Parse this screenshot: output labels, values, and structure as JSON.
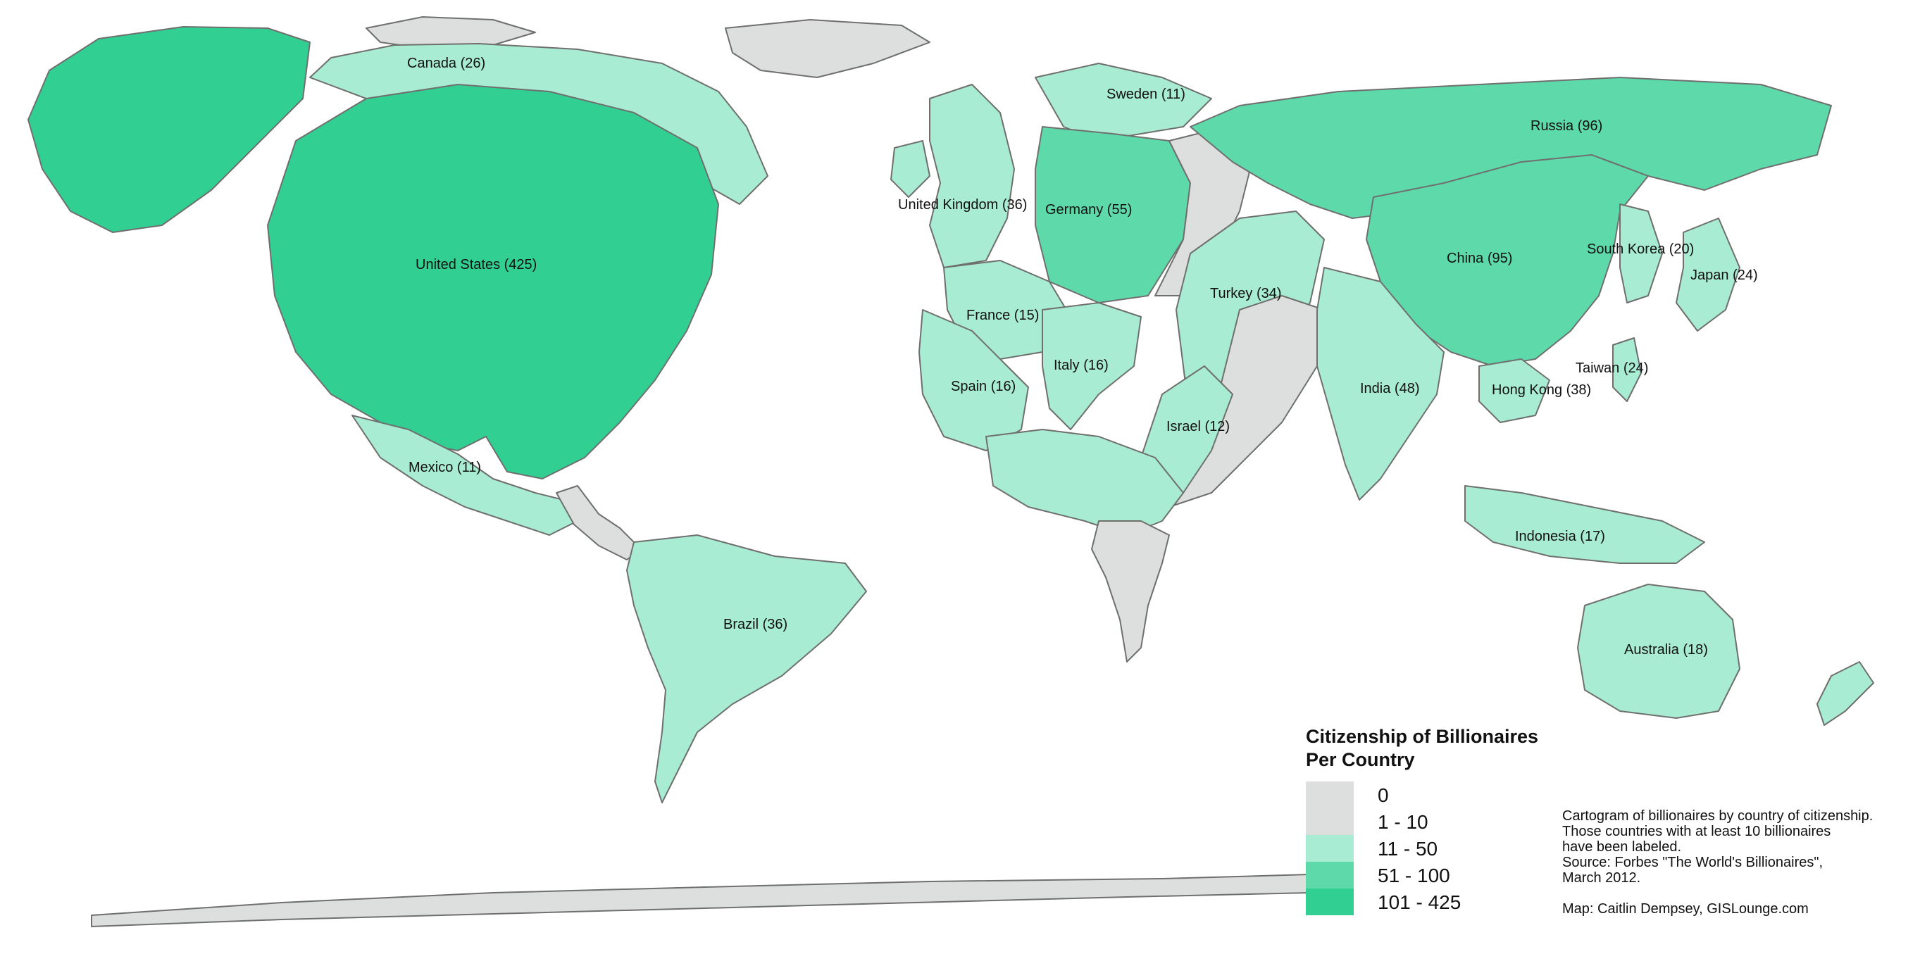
{
  "legend": {
    "title": "Citizenship of Billionaires Per Country",
    "classes": [
      {
        "label": "0",
        "color": "#dcdfdd"
      },
      {
        "label": "1 - 10",
        "color": "#dcdfdd"
      },
      {
        "label": "11 - 50",
        "color": "#a8ecd3"
      },
      {
        "label": "51 - 100",
        "color": "#5ed9aa"
      },
      {
        "label": "101 - 425",
        "color": "#32cf92"
      }
    ]
  },
  "labels": {
    "canada": "Canada (26)",
    "united_states": "United States (425)",
    "mexico": "Mexico (11)",
    "brazil": "Brazil (36)",
    "sweden": "Sweden (11)",
    "united_kingdom": "United Kingdom (36)",
    "germany": "Germany (55)",
    "france": "France (15)",
    "italy": "Italy (16)",
    "spain": "Spain (16)",
    "turkey": "Turkey (34)",
    "israel": "Israel (12)",
    "russia": "Russia (96)",
    "china": "China (95)",
    "south_korea": "South Korea (20)",
    "japan": "Japan (24)",
    "taiwan": "Taiwan (24)",
    "hong_kong": "Hong Kong (38)",
    "india": "India (48)",
    "indonesia": "Indonesia (17)",
    "australia": "Australia (18)"
  },
  "notes": {
    "line1": "Cartogram of billionaires by country of citizenship.",
    "line2": "Those countries with at least 10 billionaires",
    "line3": "have been labeled.",
    "line4": "Source: Forbes  \"The World's Billionaires\",",
    "line5": "March 2012.",
    "credit": "Map: Caitlin Dempsey, GISLounge.com"
  }
}
